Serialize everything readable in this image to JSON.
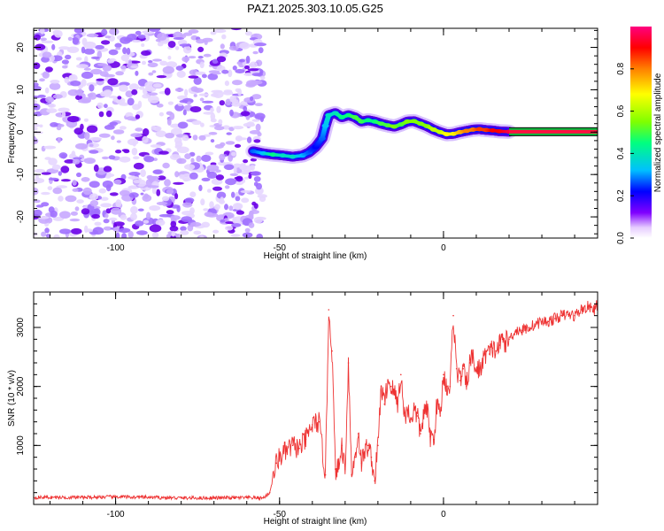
{
  "title": "PAZ1.2025.303.10.05.G25",
  "chart_data": [
    {
      "type": "heatmap",
      "name": "spectrogram",
      "xlabel": "Height of straight line (km)",
      "ylabel": "Frequency (Hz)",
      "xlim": [
        -125,
        47
      ],
      "ylim": [
        -25,
        24.5
      ],
      "xticks": [
        -100,
        -50,
        0
      ],
      "yticks": [
        -20,
        -10,
        0,
        10,
        20
      ],
      "noise_region": [
        -125,
        -55
      ],
      "colorbar": {
        "label": "Normalized spectral amplitude",
        "range": [
          0,
          1
        ],
        "ticks": [
          0.0,
          0.2,
          0.4,
          0.6,
          0.8
        ],
        "tick_labels": [
          "0.0",
          "0.2",
          "0.4",
          "0.6",
          "0.8"
        ],
        "colors": [
          "#ffffff",
          "#d6b3ff",
          "#8000ff",
          "#0000ff",
          "#00c0ff",
          "#00ff80",
          "#80ff00",
          "#ffff00",
          "#ff8000",
          "#ff0000",
          "#ff0080"
        ]
      },
      "signal_track": {
        "x": [
          -58,
          -55,
          -52,
          -49,
          -46,
          -43,
          -41,
          -39,
          -37,
          -36,
          -35,
          -33,
          -31,
          -29,
          -27,
          -25,
          -23,
          -21,
          -19,
          -17,
          -15,
          -13,
          -11,
          -9,
          -7,
          -5,
          -3,
          -1,
          1,
          3,
          5,
          7,
          9,
          11,
          13,
          15,
          17,
          20,
          47
        ],
        "y": [
          -4.5,
          -5.0,
          -5.3,
          -5.5,
          -5.8,
          -5.5,
          -4.8,
          -3.5,
          -1.5,
          1.5,
          4.0,
          4.5,
          3.5,
          4.0,
          3.5,
          2.5,
          2.8,
          2.5,
          2.0,
          1.6,
          1.3,
          1.8,
          2.5,
          2.6,
          2.0,
          1.4,
          0.6,
          0.0,
          -0.5,
          -0.4,
          0.0,
          0.3,
          0.6,
          0.7,
          0.5,
          0.4,
          0.2,
          0.1,
          0.1
        ],
        "amplitude": [
          0.35,
          0.4,
          0.5,
          0.45,
          0.45,
          0.4,
          0.35,
          0.3,
          0.35,
          0.4,
          0.45,
          0.45,
          0.5,
          0.5,
          0.55,
          0.55,
          0.5,
          0.5,
          0.55,
          0.55,
          0.6,
          0.55,
          0.6,
          0.6,
          0.6,
          0.6,
          0.65,
          0.65,
          0.7,
          0.7,
          0.75,
          0.8,
          0.8,
          0.85,
          0.85,
          0.9,
          0.9,
          0.95,
          0.98
        ]
      }
    },
    {
      "type": "line",
      "name": "snr",
      "xlabel": "Height of straight line (km)",
      "ylabel": "SNR (10 * v/v)",
      "xlim": [
        -125,
        47
      ],
      "ylim": [
        0,
        3600
      ],
      "xticks": [
        -100,
        -50,
        0
      ],
      "yticks": [
        1000,
        2000,
        3000
      ],
      "color": "#ee3333",
      "series": [
        {
          "name": "SNR",
          "x": [
            -125,
            -110,
            -100,
            -90,
            -80,
            -70,
            -60,
            -55,
            -53,
            -51,
            -50,
            -48,
            -46,
            -44,
            -42,
            -40,
            -38,
            -36,
            -35,
            -34,
            -33,
            -32,
            -31,
            -30,
            -29,
            -28,
            -27,
            -26,
            -25,
            -24,
            -23,
            -22,
            -21,
            -20,
            -19,
            -18,
            -17,
            -16,
            -15,
            -14,
            -13,
            -12,
            -11,
            -10,
            -9,
            -8,
            -7,
            -6,
            -5,
            -4,
            -3,
            -2,
            -1,
            0,
            1,
            2,
            3,
            4,
            5,
            6,
            7,
            8,
            9,
            10,
            11,
            12,
            13,
            14,
            15,
            16,
            17,
            18,
            19,
            20,
            22,
            24,
            26,
            28,
            30,
            32,
            34,
            36,
            38,
            40,
            42,
            44,
            46,
            47
          ],
          "y": [
            120,
            120,
            130,
            120,
            110,
            110,
            115,
            110,
            200,
            700,
            800,
            900,
            1000,
            950,
            1100,
            1350,
            1400,
            500,
            3300,
            2600,
            600,
            600,
            1000,
            600,
            2400,
            500,
            800,
            1200,
            700,
            900,
            1000,
            800,
            400,
            1000,
            2000,
            1700,
            2100,
            2000,
            1900,
            1700,
            2200,
            1500,
            1600,
            1450,
            1600,
            1500,
            1200,
            1550,
            1600,
            1150,
            1100,
            1700,
            1500,
            2200,
            2000,
            2000,
            3200,
            2300,
            2100,
            2300,
            2000,
            2400,
            2500,
            2250,
            2300,
            2400,
            2600,
            2550,
            2650,
            2600,
            2700,
            2800,
            2750,
            2800,
            2950,
            2950,
            3000,
            3050,
            3100,
            3100,
            3150,
            3200,
            3220,
            3200,
            3300,
            3350,
            3300,
            3400
          ]
        }
      ]
    }
  ]
}
